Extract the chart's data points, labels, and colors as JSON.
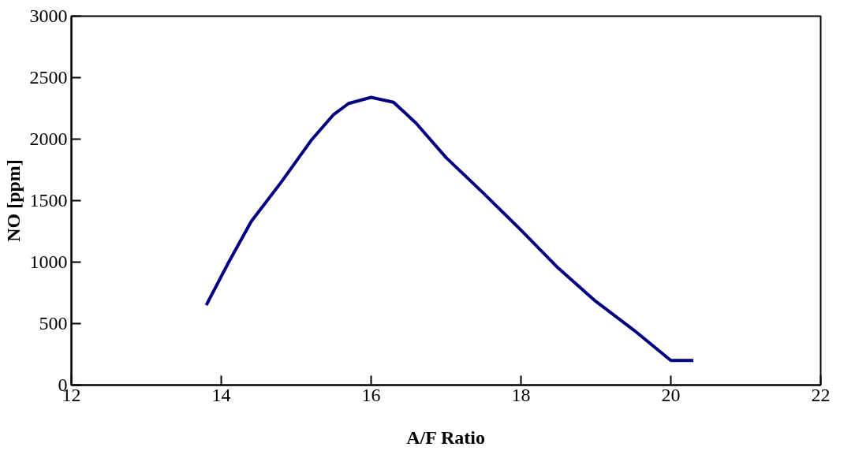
{
  "chart_data": {
    "type": "line",
    "xlabel": "A/F Ratio",
    "ylabel": "NO [ppm]",
    "x": [
      13.8,
      14.1,
      14.4,
      14.8,
      15.2,
      15.5,
      15.7,
      16.0,
      16.3,
      16.6,
      17.0,
      17.5,
      18.0,
      18.5,
      19.0,
      19.5,
      20.0,
      20.3
    ],
    "series": [
      {
        "color": "#000080",
        "values": [
          650,
          1000,
          1330,
          1650,
          1990,
          2200,
          2290,
          2340,
          2300,
          2130,
          1850,
          1560,
          1260,
          950,
          680,
          450,
          200,
          200
        ]
      }
    ],
    "xlim": [
      12,
      22
    ],
    "xticks": [
      12,
      14,
      16,
      18,
      20,
      22
    ],
    "ylim": [
      0,
      3000
    ],
    "yticks": [
      0,
      500,
      1000,
      1500,
      2000,
      2500,
      3000
    ],
    "grid": false,
    "marker": "none",
    "line_style": "solid"
  }
}
